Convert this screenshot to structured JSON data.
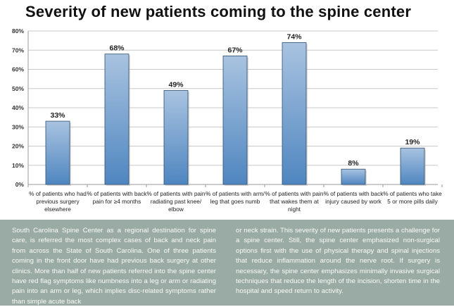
{
  "chart_data": {
    "type": "bar",
    "title": "Severity of new patients coming to the spine center",
    "categories": [
      "% of patients who had previous surgery elsewhere",
      "% of patients with back pain for ≥4 months",
      "% of patients with pain radiating past knee/ elbow",
      "% of patients with arm/ leg that goes numb",
      "% of patients with pain that wakes them at night",
      "% of patients with back injury caused  by work",
      "% of patients who take 5 or more pills daily"
    ],
    "values": [
      33,
      68,
      49,
      67,
      74,
      8,
      19
    ],
    "data_labels": [
      "33%",
      "68%",
      "49%",
      "67%",
      "74%",
      "8%",
      "19%"
    ],
    "yticks": [
      "0%",
      "10%",
      "20%",
      "30%",
      "40%",
      "50%",
      "60%",
      "70%",
      "80%"
    ],
    "ylim": [
      0,
      80
    ],
    "grid": true,
    "bar_color": "#6b9bcd"
  },
  "text": {
    "col1": "South Carolina Spine Center as a regional destination for spine care, is referred the most complex cases of back and neck pain from across the State of South Carolina. One of three patients coming in the front door have had previous back surgery at other clinics. More than half of new patients referred into the spine center have red flag symptoms like numbness into a leg or arm or radiating pain into an arm or leg, which implies disc-related symptoms rather than simple acute back",
    "col2": "or neck strain. This severity of new patients presents a challenge for a spine center. Still, the spine center emphasized non-surgical options first with the use of physical therapy and spinal injections that reduce inflammation around the nerve root. If surgery is necessary, the spine center emphasizes minimally invasive surgical techniques that reduce the length of the incision, shorten time in the hospital and speed return to activity."
  }
}
